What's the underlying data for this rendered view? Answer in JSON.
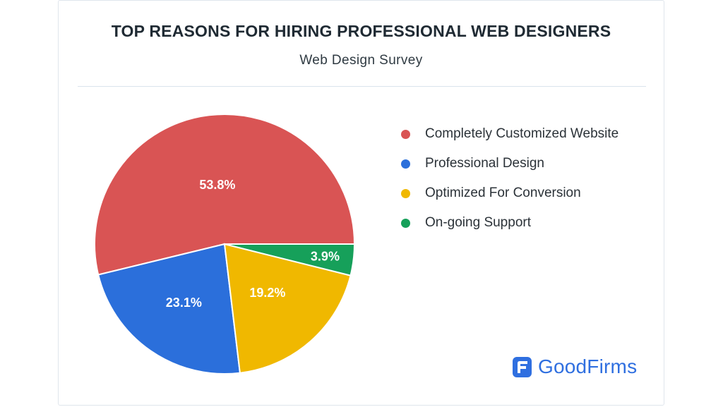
{
  "chart_data": {
    "type": "pie",
    "title": "TOP REASONS FOR HIRING PROFESSIONAL WEB DESIGNERS",
    "subtitle": "Web Design Survey",
    "categories": [
      "Completely Customized Website",
      "Professional Design",
      "Optimized For Conversion",
      "On-going Support"
    ],
    "values": [
      53.8,
      23.1,
      19.2,
      3.9
    ],
    "labels": [
      "53.8%",
      "23.1%",
      "19.2%",
      "3.9%"
    ],
    "colors": [
      "#d95454",
      "#2b6fdb",
      "#f0b800",
      "#16a05a"
    ],
    "legend_position": "right"
  },
  "brand": {
    "name": "GoodFirms",
    "color": "#2f6fe0"
  }
}
